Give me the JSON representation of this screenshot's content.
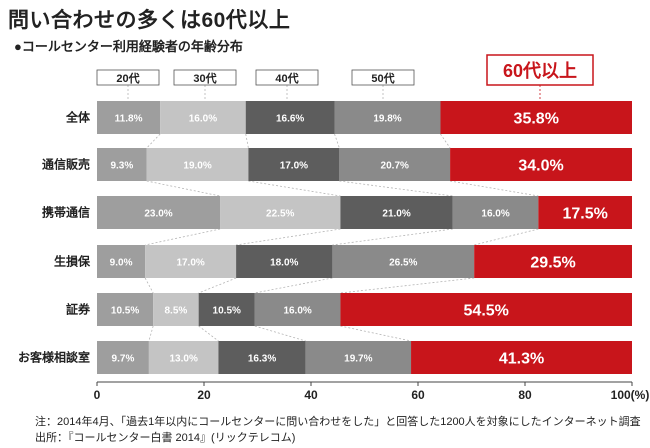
{
  "title": "問い合わせの多くは60代以上",
  "subtitle": "●コールセンター利用経験者の年齢分布",
  "notes": [
    "注：2014年4月、「過去1年以内にコールセンターに問い合わせをした」と回答した1200人を対象にしたインターネット調査",
    "出所：『コールセンター白書 2014』(リックテレコム)"
  ],
  "colors": {
    "20s": "#9e9e9e",
    "30s": "#c4c4c4",
    "40s": "#5d5d5d",
    "50s": "#8a8a8a",
    "60s": "#c8151b"
  },
  "chart_data": {
    "type": "bar",
    "orientation": "horizontal",
    "stacked": true,
    "categories": [
      "全体",
      "通信販売",
      "携帯通信",
      "生損保",
      "証券",
      "お客様相談室"
    ],
    "series": [
      {
        "name": "20代",
        "values": [
          11.8,
          9.3,
          23.0,
          9.0,
          10.5,
          9.7
        ]
      },
      {
        "name": "30代",
        "values": [
          16.0,
          19.0,
          22.5,
          17.0,
          8.5,
          13.0
        ]
      },
      {
        "name": "40代",
        "values": [
          16.6,
          17.0,
          21.0,
          18.0,
          10.5,
          16.3
        ]
      },
      {
        "name": "50代",
        "values": [
          19.8,
          20.7,
          16.0,
          26.5,
          16.0,
          19.7
        ]
      },
      {
        "name": "60代以上",
        "values": [
          35.8,
          34.0,
          17.5,
          29.5,
          54.5,
          41.3
        ]
      }
    ],
    "value_labels": [
      [
        "11.8%",
        "16.0%",
        "16.6%",
        "19.8%",
        "35.8%"
      ],
      [
        "9.3%",
        "19.0%",
        "17.0%",
        "20.7%",
        "34.0%"
      ],
      [
        "23.0%",
        "22.5%",
        "21.0%",
        "16.0%",
        "17.5%"
      ],
      [
        "9.0%",
        "17.0%",
        "18.0%",
        "26.5%",
        "29.5%"
      ],
      [
        "10.5%",
        "8.5%",
        "10.5%",
        "16.0%",
        "54.5%"
      ],
      [
        "9.7%",
        "13.0%",
        "16.3%",
        "19.7%",
        "41.3%"
      ]
    ],
    "x_ticks": [
      "0",
      "20",
      "40",
      "60",
      "80",
      "100(%)"
    ],
    "xlim": [
      0,
      100
    ],
    "legend_position": "top"
  }
}
